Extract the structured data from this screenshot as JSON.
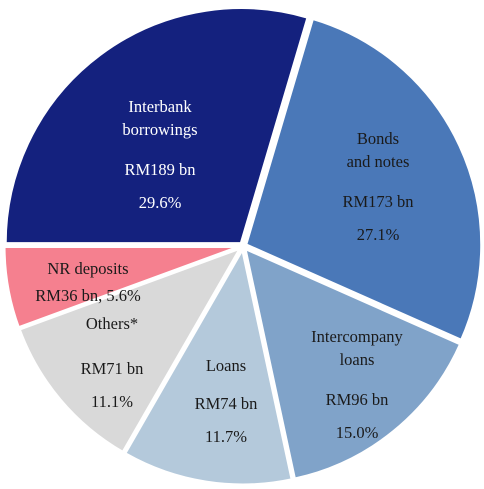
{
  "chart_data": {
    "type": "pie",
    "categories": [
      "Interbank\nborrowings",
      "Bonds\nand notes",
      "Intercompany\nloans",
      "Loans",
      "Others*",
      "NR deposits"
    ],
    "values": [
      29.6,
      27.1,
      15.0,
      11.7,
      11.1,
      5.6
    ],
    "value_labels": [
      "29.6%",
      "27.1%",
      "15.0%",
      "11.7%",
      "11.1%",
      "RM36 bn, 5.6%"
    ],
    "amounts": [
      189,
      173,
      96,
      74,
      71,
      36
    ],
    "amount_labels": [
      "RM189 bn",
      "RM173 bn",
      "RM96 bn",
      "RM74 bn",
      "RM71 bn",
      null
    ],
    "colors": [
      "#14217e",
      "#4a78b8",
      "#80a3c9",
      "#b4c9db",
      "#d9d9d9",
      "#f5808f"
    ]
  }
}
